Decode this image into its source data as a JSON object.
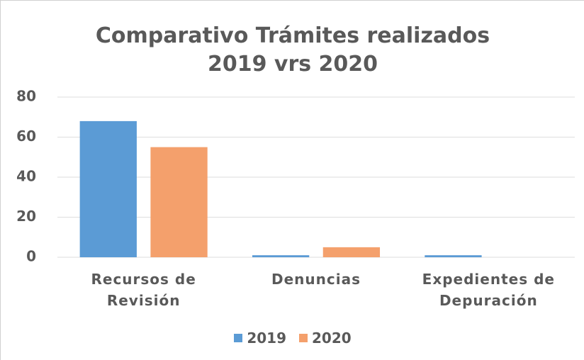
{
  "chart_data": {
    "type": "bar",
    "title": "Comparativo Trámites realizados 2019 vrs 2020",
    "categories": [
      "Recursos de Revisión",
      "Denuncias",
      "Expedientes de Depuración"
    ],
    "series": [
      {
        "name": "2019",
        "color": "#5b9bd5",
        "values": [
          68,
          1,
          1
        ]
      },
      {
        "name": "2020",
        "color": "#f4a06c",
        "values": [
          55,
          5,
          0
        ]
      }
    ],
    "ylim": [
      0,
      80
    ],
    "yticks": [
      0,
      20,
      40,
      60,
      80
    ],
    "grid": true,
    "legend": "bottom"
  }
}
